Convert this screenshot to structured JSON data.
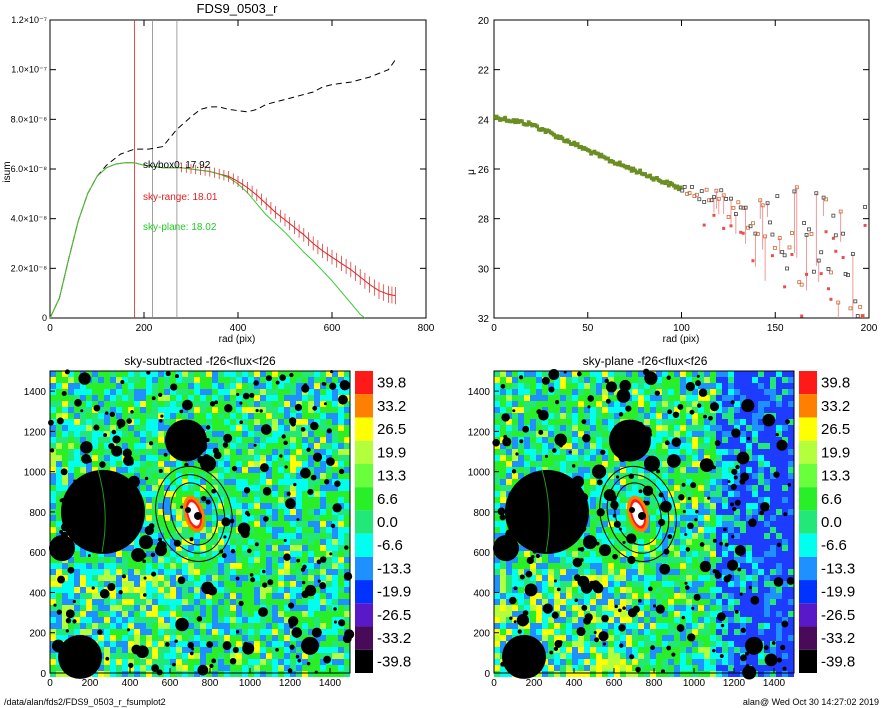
{
  "chart_data": [
    {
      "type": "line",
      "title": "FDS9_0503_r",
      "xlabel": "rad (pix)",
      "ylabel": "isum",
      "xlim": [
        0,
        800
      ],
      "ylim": [
        0,
        1.2e-07
      ],
      "xticks": [
        "0",
        "200",
        "400",
        "600",
        "800"
      ],
      "yticks": [
        "0",
        "2.0×10⁻⁸",
        "4.0×10⁻⁸",
        "6.0×10⁻⁸",
        "8.0×10⁻⁸",
        "1.0×10⁻⁷",
        "1.2×10⁻⁷"
      ],
      "vlines": [
        {
          "x": 180,
          "color": "#e02020"
        },
        {
          "x": 218,
          "color": "#888888"
        },
        {
          "x": 270,
          "color": "#888888"
        }
      ],
      "annotations": [
        {
          "text": "skybox0: 17.92",
          "color": "#000000"
        },
        {
          "text": "sky-range: 18.01",
          "color": "#e02020"
        },
        {
          "text": "sky-plane: 18.02",
          "color": "#22cc22"
        }
      ],
      "series": [
        {
          "style": "dashed",
          "color": "#000000",
          "x": [
            0,
            20,
            40,
            60,
            80,
            100,
            120,
            150,
            180,
            210,
            240,
            270,
            300,
            320,
            340,
            360,
            380,
            400,
            420,
            440,
            460,
            480,
            500,
            520,
            540,
            560,
            580,
            600,
            620,
            640,
            660,
            680,
            700,
            720,
            735
          ],
          "y": [
            0,
            8e-09,
            2.4e-08,
            3.9e-08,
            5e-08,
            5.7e-08,
            6.15e-08,
            6.6e-08,
            6.8e-08,
            6.8e-08,
            6.9e-08,
            7.6e-08,
            8.1e-08,
            8.4e-08,
            8.5e-08,
            8.5e-08,
            8.4e-08,
            8.35e-08,
            8.3e-08,
            8.4e-08,
            8.6e-08,
            8.7e-08,
            8.8e-08,
            8.9e-08,
            9e-08,
            9.1e-08,
            9.3e-08,
            9.4e-08,
            9.45e-08,
            9.5e-08,
            9.6e-08,
            9.7e-08,
            9.85e-08,
            1e-07,
            1.04e-07
          ]
        },
        {
          "style": "solid",
          "color": "#e02020",
          "x": [
            0,
            20,
            40,
            60,
            80,
            100,
            120,
            140,
            160,
            180,
            200,
            220,
            240,
            260,
            280,
            300,
            320,
            340,
            360,
            380,
            400,
            420,
            440,
            460,
            480,
            500,
            520,
            540,
            560,
            580,
            600,
            620,
            640,
            660,
            680,
            700,
            720,
            735
          ],
          "y": [
            0,
            8e-09,
            2.4e-08,
            3.9e-08,
            5e-08,
            5.7e-08,
            6.05e-08,
            6.2e-08,
            6.25e-08,
            6.25e-08,
            6.15e-08,
            6.1e-08,
            6.05e-08,
            6.05e-08,
            6.05e-08,
            6e-08,
            5.95e-08,
            5.9e-08,
            5.8e-08,
            5.7e-08,
            5.5e-08,
            5.25e-08,
            4.95e-08,
            4.6e-08,
            4.25e-08,
            3.95e-08,
            3.65e-08,
            3.35e-08,
            3e-08,
            2.7e-08,
            2.45e-08,
            2.2e-08,
            1.95e-08,
            1.65e-08,
            1.35e-08,
            1.1e-08,
            9.5e-09,
            9e-09
          ]
        },
        {
          "style": "solid",
          "color": "#33cc33",
          "x": [
            0,
            20,
            40,
            60,
            80,
            100,
            120,
            140,
            160,
            180,
            200,
            220,
            240,
            260,
            280,
            300,
            320,
            340,
            360,
            380,
            400,
            420,
            440,
            460,
            480,
            500,
            520,
            540,
            560,
            580,
            600,
            620,
            640,
            660,
            670
          ],
          "y": [
            0,
            8e-09,
            2.4e-08,
            3.9e-08,
            5e-08,
            5.7e-08,
            6.05e-08,
            6.2e-08,
            6.25e-08,
            6.25e-08,
            6.15e-08,
            6.1e-08,
            6.05e-08,
            6.05e-08,
            6.05e-08,
            6e-08,
            5.95e-08,
            5.9e-08,
            5.8e-08,
            5.65e-08,
            5.4e-08,
            5.05e-08,
            4.6e-08,
            4.15e-08,
            3.8e-08,
            3.45e-08,
            3.05e-08,
            2.65e-08,
            2.3e-08,
            1.9e-08,
            1.5e-08,
            1.05e-08,
            6e-09,
            1.5e-09,
            0
          ]
        }
      ]
    },
    {
      "type": "scatter",
      "xlabel": "rad (pix)",
      "ylabel": "μ",
      "xlim": [
        0,
        200
      ],
      "ylim": [
        32,
        20
      ],
      "xticks": [
        "0",
        "50",
        "100",
        "150",
        "200"
      ],
      "yticks": [
        "20",
        "22",
        "24",
        "26",
        "28",
        "30",
        "32"
      ],
      "trend": {
        "x": [
          0,
          10,
          20,
          30,
          40,
          50,
          60,
          70,
          80,
          90,
          100,
          110,
          120,
          130,
          140,
          150,
          160,
          170,
          180,
          190,
          200
        ],
        "y": [
          23.9,
          24.05,
          24.2,
          24.55,
          24.9,
          25.25,
          25.6,
          25.9,
          26.2,
          26.5,
          26.8,
          27.1,
          27.4,
          27.7,
          28.0,
          28.3,
          28.6,
          28.9,
          29.2,
          29.5,
          29.8
        ]
      }
    },
    {
      "type": "heatmap",
      "title": "sky-subtracted -f26<flux<f26",
      "xlim": [
        0,
        1500
      ],
      "ylim": [
        0,
        1500
      ],
      "xticks": [
        "0",
        "200",
        "400",
        "600",
        "800",
        "1000",
        "1200",
        "1400"
      ],
      "yticks": [
        "0",
        "200",
        "400",
        "600",
        "800",
        "1000",
        "1200",
        "1400"
      ],
      "colorbar_labels": [
        "39.8",
        "33.2",
        "26.5",
        "19.9",
        "13.3",
        "6.6",
        "0.0",
        "-6.6",
        "-13.3",
        "-19.9",
        "-26.5",
        "-33.2",
        "-39.8"
      ]
    },
    {
      "type": "heatmap",
      "title": "sky-plane -f26<flux<f26",
      "xlim": [
        0,
        1500
      ],
      "ylim": [
        0,
        1500
      ],
      "xticks": [
        "0",
        "200",
        "400",
        "600",
        "800",
        "1000",
        "1200",
        "1400"
      ],
      "yticks": [
        "0",
        "200",
        "400",
        "600",
        "800",
        "1000",
        "1200",
        "1400"
      ],
      "colorbar_labels": [
        "39.8",
        "33.2",
        "26.5",
        "19.9",
        "13.3",
        "6.6",
        "0.0",
        "-6.6",
        "-13.3",
        "-19.9",
        "-26.5",
        "-33.2",
        "-39.8"
      ]
    }
  ],
  "colorbar_colors": [
    "#ff1a1a",
    "#ff8000",
    "#ffff00",
    "#b4ff3c",
    "#6aff3c",
    "#29ef29",
    "#22e87a",
    "#00ffee",
    "#1e90ff",
    "#0033ff",
    "#5a19c8",
    "#4a0a5a",
    "#000000"
  ],
  "footer": {
    "left": "/data/alan/fds2/FDS9_0503_r_fsumplot2",
    "right": "alan@  Wed Oct 30 14:27:02 2019"
  }
}
